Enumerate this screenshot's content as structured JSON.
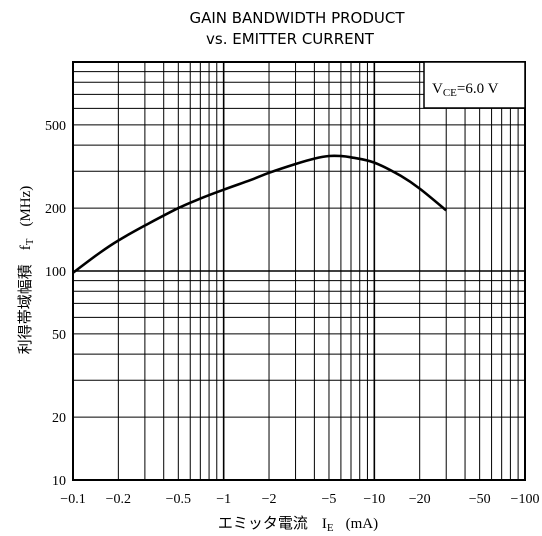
{
  "chart_data": {
    "type": "line",
    "title_line1": "GAIN BANDWIDTH PRODUCT",
    "title_line2": "vs. EMITTER CURRENT",
    "xlabel_prefix": "エミッタ電流",
    "xlabel_symbol": "I",
    "xlabel_sub": "E",
    "xlabel_unit": "(mA)",
    "ylabel_prefix": "利得帯域幅積",
    "ylabel_symbol": "f",
    "ylabel_sub": "T",
    "ylabel_unit": "(MHz)",
    "condition_prefix": "V",
    "condition_sub": "CE",
    "condition_value": "=6.0 V",
    "x_scale": "log",
    "y_scale": "log",
    "xlim": [
      -0.1,
      -100
    ],
    "ylim": [
      10,
      1000
    ],
    "grid": true,
    "x_ticks": [
      {
        "value": -0.1,
        "label": "−0.1"
      },
      {
        "value": -0.2,
        "label": "−0.2"
      },
      {
        "value": -0.5,
        "label": "−0.5"
      },
      {
        "value": -1,
        "label": "−1"
      },
      {
        "value": -2,
        "label": "−2"
      },
      {
        "value": -5,
        "label": "−5"
      },
      {
        "value": -10,
        "label": "−10"
      },
      {
        "value": -20,
        "label": "−20"
      },
      {
        "value": -50,
        "label": "−50"
      },
      {
        "value": -100,
        "label": "−100"
      }
    ],
    "y_ticks": [
      {
        "value": 10,
        "label": "10"
      },
      {
        "value": 20,
        "label": "20"
      },
      {
        "value": 50,
        "label": "50"
      },
      {
        "value": 100,
        "label": "100"
      },
      {
        "value": 200,
        "label": "200"
      },
      {
        "value": 500,
        "label": "500"
      }
    ],
    "series": [
      {
        "x": [
          -0.1,
          -0.15,
          -0.2,
          -0.3,
          -0.5,
          -0.7,
          -1,
          -1.5,
          -2,
          -3,
          -4,
          -5,
          -6,
          -7,
          -10,
          -15,
          -20,
          -30
        ],
        "y": [
          98,
          122,
          140,
          165,
          200,
          222,
          245,
          272,
          295,
          325,
          345,
          355,
          355,
          350,
          330,
          285,
          248,
          195
        ]
      }
    ]
  }
}
